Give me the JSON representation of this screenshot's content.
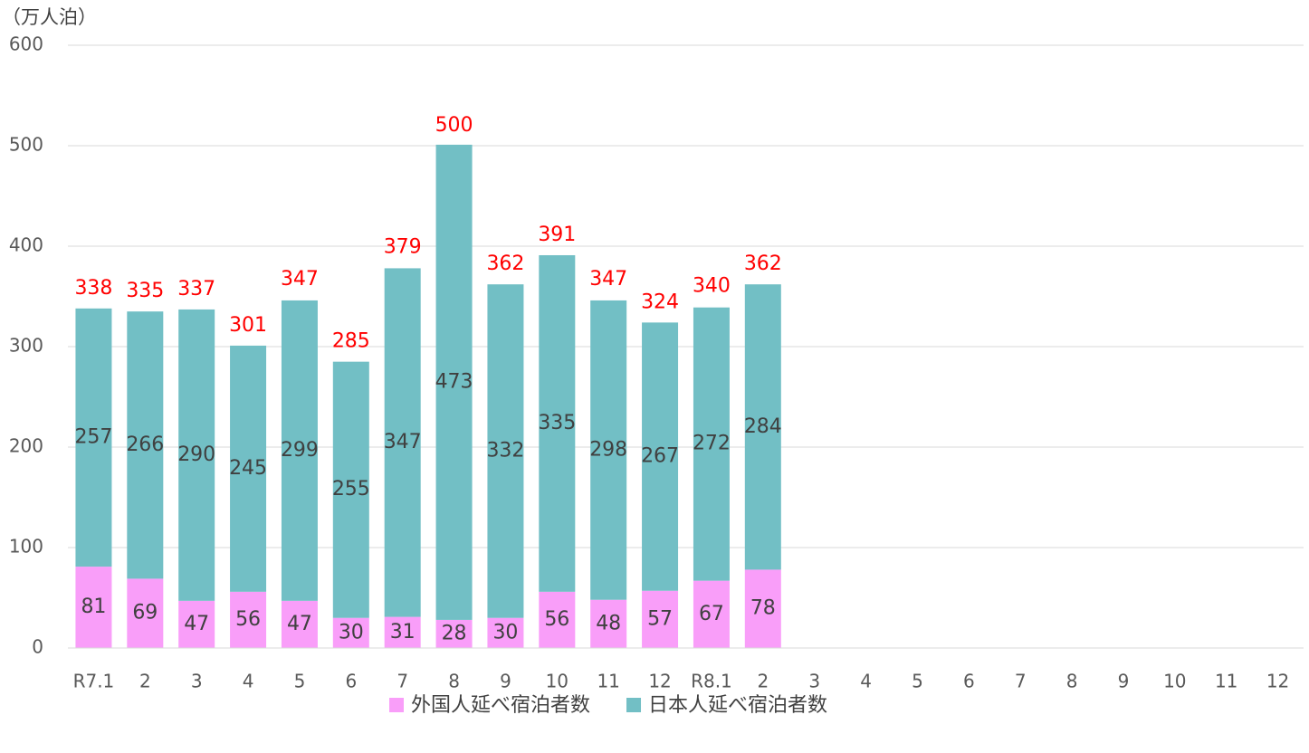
{
  "chart_data": {
    "type": "bar",
    "stacked": true,
    "y_label": "（万人泊）",
    "categories": [
      "R7.1",
      "2",
      "3",
      "4",
      "5",
      "6",
      "7",
      "8",
      "9",
      "10",
      "11",
      "12",
      "R8.1",
      "2",
      "3",
      "4",
      "5",
      "6",
      "7",
      "8",
      "9",
      "10",
      "11",
      "12"
    ],
    "series": [
      {
        "name": "外国人延べ宿泊者数",
        "color": "#f99ef9",
        "values": [
          81,
          69,
          47,
          56,
          47,
          30,
          31,
          28,
          30,
          56,
          48,
          57,
          67,
          78,
          null,
          null,
          null,
          null,
          null,
          null,
          null,
          null,
          null,
          null
        ]
      },
      {
        "name": "日本人延べ宿泊者数",
        "color": "#72bfc5",
        "values": [
          257,
          266,
          290,
          245,
          299,
          255,
          347,
          473,
          332,
          335,
          298,
          267,
          272,
          284,
          null,
          null,
          null,
          null,
          null,
          null,
          null,
          null,
          null,
          null
        ]
      }
    ],
    "totals": [
      338,
      335,
      337,
      301,
      347,
      285,
      379,
      500,
      362,
      391,
      347,
      324,
      340,
      362,
      null,
      null,
      null,
      null,
      null,
      null,
      null,
      null,
      null,
      null
    ],
    "totals_color": "#ff0000",
    "ylim": [
      0,
      600
    ],
    "yticks": [
      0,
      100,
      200,
      300,
      400,
      500,
      600
    ],
    "grid": true,
    "legend": "bottom"
  }
}
